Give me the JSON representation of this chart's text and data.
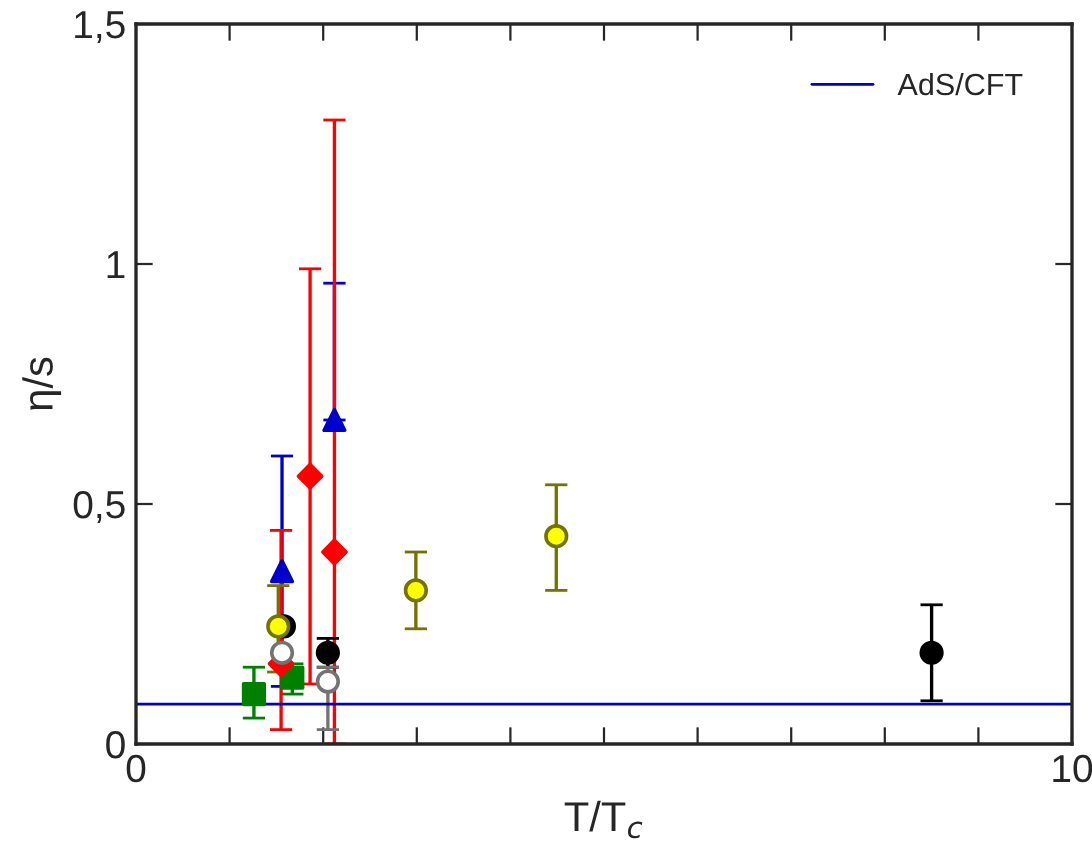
{
  "chart_data": {
    "type": "scatter",
    "xlabel": "T/T$_{c}$",
    "ylabel": "η/s",
    "xlim": [
      0,
      10
    ],
    "ylim": [
      0,
      1.5
    ],
    "xticks": [
      0,
      {
        "value": 1,
        "label": null
      },
      {
        "value": 2,
        "label": null
      },
      {
        "value": 3,
        "label": null
      },
      {
        "value": 4,
        "label": null
      },
      {
        "value": 5,
        "label": null
      },
      {
        "value": 6,
        "label": null
      },
      {
        "value": 7,
        "label": null
      },
      {
        "value": 8,
        "label": null
      },
      {
        "value": 9,
        "label": null
      },
      10
    ],
    "yticks": [
      {
        "value": 0,
        "label": "0"
      },
      {
        "value": 0.5,
        "label": "0,5"
      },
      {
        "value": 1,
        "label": "1"
      },
      {
        "value": 1.5,
        "label": "1,5"
      }
    ],
    "grid": false,
    "legend": "top right",
    "series": [
      {
        "marker": "square",
        "color": "#008000",
        "x": [
          1.26,
          1.67
        ],
        "values": [
          0.104,
          0.138
        ],
        "errors": [
          [
            0.054,
            0.16
          ],
          [
            0.104,
            0.167
          ]
        ]
      },
      {
        "marker": "triangle",
        "color": "#0000cc",
        "x": [
          1.56,
          2.12
        ],
        "values": [
          0.36,
          0.675
        ],
        "errors": [
          [
            0.12,
            0.6
          ],
          [
            0.675,
            0.96
          ]
        ]
      },
      {
        "marker": "diamond",
        "color": "#ff0000",
        "x": [
          1.55,
          1.86,
          2.12
        ],
        "values": [
          0.167,
          0.558,
          0.4
        ],
        "errors": [
          [
            0.03,
            0.445
          ],
          [
            0.125,
            0.99
          ],
          [
            0.0,
            1.3
          ]
        ]
      },
      {
        "marker": "circle",
        "color": "#000000",
        "x": [
          1.58,
          2.05,
          8.5
        ],
        "values": [
          0.245,
          0.19,
          0.19
        ],
        "errors": [
          null,
          [
            0.16,
            0.22
          ],
          [
            0.09,
            0.29
          ]
        ]
      },
      {
        "marker": "circle",
        "color": "#ffffff",
        "x": [
          1.56,
          2.05
        ],
        "values": [
          0.19,
          0.13
        ],
        "errors": [
          null,
          [
            0.03,
            0.16
          ]
        ]
      },
      {
        "marker": "circle",
        "color": "#ffff00",
        "x": [
          1.52,
          2.99,
          4.49
        ],
        "values": [
          0.245,
          0.32,
          0.433
        ],
        "errors": [
          [
            0.15,
            0.33
          ],
          [
            0.24,
            0.4
          ],
          [
            0.32,
            0.54
          ]
        ]
      }
    ],
    "ref_lines": [
      {
        "axis": "y",
        "value": 0.083,
        "label": "AdS/CFT",
        "color": "#0000cc"
      }
    ]
  }
}
